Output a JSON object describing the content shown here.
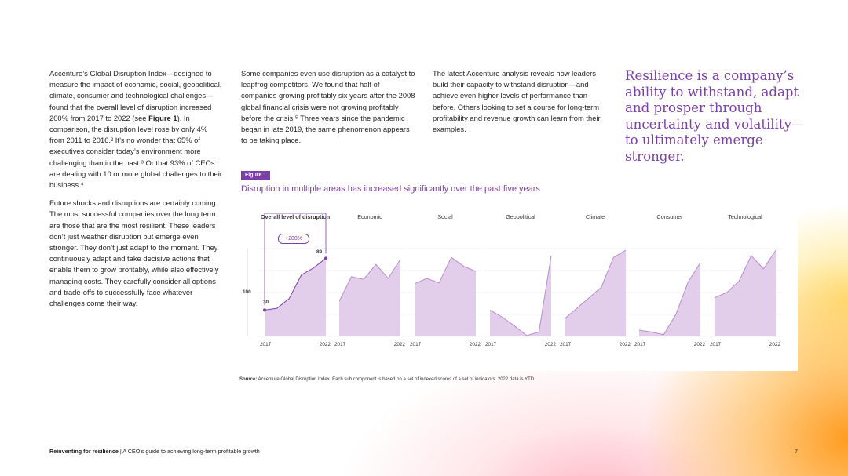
{
  "column1": {
    "p1_a": "Accenture’s Global Disruption Index—designed to measure the impact of economic, social, geopolitical, climate, consumer and technological challenges—found that the overall level of disruption increased 200% from 2017 to 2022 (see ",
    "p1_bold": "Figure 1",
    "p1_b": "). In comparison, the disruption level rose by only 4% from 2011 to 2016.² It’s no wonder that 65% of executives consider today’s environment more challenging than in the past.³ Or that 93% of CEOs are dealing with 10 or more global challenges to their business.⁴",
    "p2": "Future shocks and disruptions are certainly coming. The most successful companies over the long term are those that are the most resilient. These leaders don’t just weather disruption but emerge even stronger. They don’t just adapt to the moment. They continuously adapt and take decisive actions that enable them to grow profitably, while also effectively managing costs. They carefully consider all options and trade-offs to successfully face whatever challenges come their way."
  },
  "column2": {
    "p1": "Some companies even use disruption as a catalyst to leapfrog competitors. We found that half of companies growing profitably six years after the 2008 global financial crisis were not growing profitably before the crisis.⁵ Three years since the pandemic began in late 2019, the same phenomenon appears to be taking place."
  },
  "column3": {
    "p1": "The latest Accenture analysis reveals how leaders build their capacity to withstand disruption—and achieve even higher levels of performance than before. Others looking to set a course for long-term profitability and revenue growth can learn from their examples."
  },
  "pull_quote": "Resilience is a company’s ability to withstand, adapt and prosper through uncertainty and volatility—to ultimately emerge stronger.",
  "figure": {
    "tag": "Figure 1",
    "title": "Disruption in multiple areas has increased significantly over the past five years",
    "badge": "+200%",
    "y_reference_label": "100",
    "start_label": "30",
    "end_label": "89",
    "x_start": "2017",
    "x_end": "2022"
  },
  "chart_data": [
    {
      "type": "area",
      "title": "Overall level of disruption",
      "x": [
        "2017",
        "2018",
        "2019",
        "2020",
        "2021",
        "2022"
      ],
      "values": [
        30,
        32,
        43,
        70,
        78,
        89
      ],
      "ylim": [
        0,
        100
      ]
    },
    {
      "type": "area",
      "title": "Economic",
      "x": [
        "2017",
        "2018",
        "2019",
        "2020",
        "2021",
        "2022"
      ],
      "values": [
        40,
        68,
        65,
        82,
        66,
        88
      ],
      "ylim": [
        0,
        100
      ]
    },
    {
      "type": "area",
      "title": "Social",
      "x": [
        "2017",
        "2018",
        "2019",
        "2020",
        "2021",
        "2022"
      ],
      "values": [
        60,
        66,
        61,
        90,
        80,
        74
      ],
      "ylim": [
        0,
        100
      ]
    },
    {
      "type": "area",
      "title": "Geopolitical",
      "x": [
        "2017",
        "2018",
        "2019",
        "2020",
        "2021",
        "2022"
      ],
      "values": [
        30,
        22,
        12,
        1,
        5,
        92
      ],
      "ylim": [
        0,
        100
      ]
    },
    {
      "type": "area",
      "title": "Climate",
      "x": [
        "2017",
        "2018",
        "2019",
        "2020",
        "2021",
        "2022"
      ],
      "values": [
        20,
        32,
        44,
        56,
        90,
        98
      ],
      "ylim": [
        0,
        100
      ]
    },
    {
      "type": "area",
      "title": "Consumer",
      "x": [
        "2017",
        "2018",
        "2019",
        "2020",
        "2021",
        "2022"
      ],
      "values": [
        7,
        5,
        2,
        25,
        62,
        84
      ],
      "ylim": [
        0,
        100
      ]
    },
    {
      "type": "area",
      "title": "Technological",
      "x": [
        "2017",
        "2018",
        "2019",
        "2020",
        "2021",
        "2022"
      ],
      "values": [
        44,
        50,
        63,
        92,
        77,
        98
      ],
      "ylim": [
        0,
        100
      ]
    }
  ],
  "colors": {
    "accent": "#7b3fa8",
    "area_fill": "#e2cdeb",
    "area_stroke": "#b88ccf",
    "grid": "#e2e2e2"
  },
  "source": {
    "label": "Source:",
    "text": " Accenture Global Disruption Index. Each sub component is based on a set of indexed scores of a set of indicators. 2022 data is YTD."
  },
  "footer": {
    "title": "Reinventing for resilience",
    "separator": " | ",
    "subtitle": "A CEO’s guide to achieving long-term profitable growth",
    "page": "7"
  }
}
